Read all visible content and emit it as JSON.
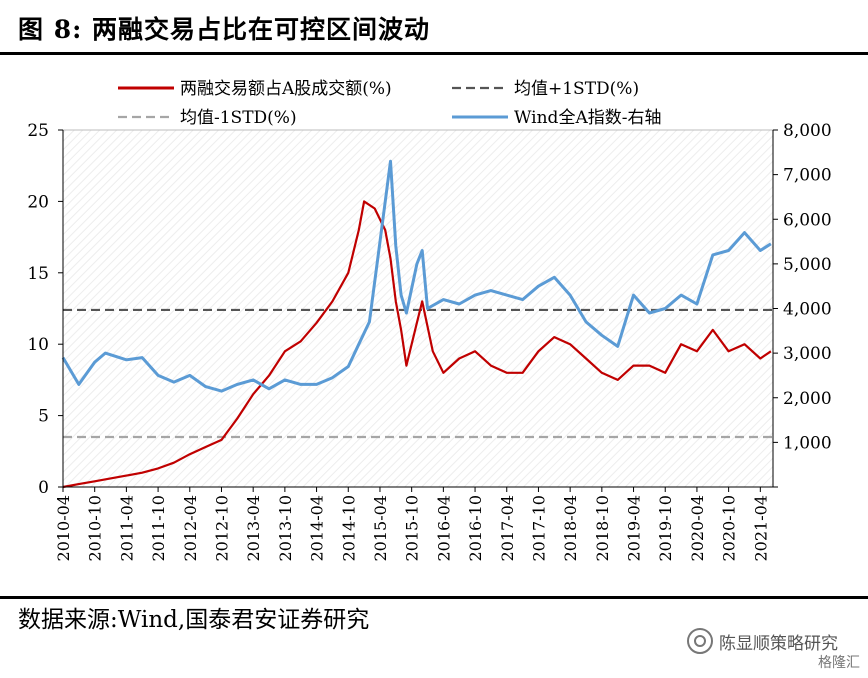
{
  "header": {
    "title": "图 8:  两融交易占比在可控区间波动"
  },
  "footer": {
    "source": "数据来源:Wind,国泰君安证券研究",
    "watermark": "陈显顺策略研究",
    "watermark2": "格隆汇"
  },
  "colors": {
    "series1": "#c00000",
    "series2": "#5b9bd5",
    "plus_std": "#555555",
    "minus_std": "#a6a6a6"
  },
  "chart_data": {
    "type": "line",
    "title": "",
    "x_tick_labels": [
      "2010-04",
      "2010-10",
      "2011-04",
      "2011-10",
      "2012-04",
      "2012-10",
      "2013-04",
      "2013-10",
      "2014-04",
      "2014-10",
      "2015-04",
      "2015-10",
      "2016-04",
      "2016-10",
      "2017-04",
      "2017-10",
      "2018-04",
      "2018-10",
      "2019-04",
      "2019-10",
      "2020-04",
      "2020-10",
      "2021-04"
    ],
    "y_left": {
      "lim": [
        0,
        25
      ],
      "ticks": [
        0,
        5,
        10,
        15,
        20,
        25
      ]
    },
    "y_right": {
      "lim": [
        0,
        8000
      ],
      "ticks": [
        "",
        "1,000",
        "2,000",
        "3,000",
        "4,000",
        "5,000",
        "6,000",
        "7,000",
        "8,000"
      ]
    },
    "legend": [
      {
        "label": "两融交易额占A股成交额(%)",
        "style": "solid",
        "color": "#c00000"
      },
      {
        "label": "均值+1STD(%)",
        "style": "dashed",
        "color": "#555555"
      },
      {
        "label": "均值-1STD(%)",
        "style": "dashed",
        "color": "#a6a6a6"
      },
      {
        "label": "Wind全A指数-右轴",
        "style": "solid",
        "color": "#5b9bd5"
      }
    ],
    "reference_lines": {
      "mean_plus_1std": 12.4,
      "mean_minus_1std": 3.5
    },
    "series": [
      {
        "axis": "left",
        "points": [
          [
            "2010-04",
            0.0
          ],
          [
            "2010-07",
            0.2
          ],
          [
            "2010-10",
            0.4
          ],
          [
            "2011-01",
            0.6
          ],
          [
            "2011-04",
            0.8
          ],
          [
            "2011-07",
            1.0
          ],
          [
            "2011-10",
            1.3
          ],
          [
            "2012-01",
            1.7
          ],
          [
            "2012-04",
            2.3
          ],
          [
            "2012-07",
            2.8
          ],
          [
            "2012-10",
            3.3
          ],
          [
            "2013-01",
            4.8
          ],
          [
            "2013-04",
            6.5
          ],
          [
            "2013-07",
            7.8
          ],
          [
            "2013-10",
            9.5
          ],
          [
            "2014-01",
            10.2
          ],
          [
            "2014-04",
            11.5
          ],
          [
            "2014-07",
            13.0
          ],
          [
            "2014-10",
            15.0
          ],
          [
            "2014-12",
            18.0
          ],
          [
            "2015-01",
            20.0
          ],
          [
            "2015-03",
            19.5
          ],
          [
            "2015-05",
            18.0
          ],
          [
            "2015-06",
            16.0
          ],
          [
            "2015-07",
            13.0
          ],
          [
            "2015-08",
            11.0
          ],
          [
            "2015-09",
            8.5
          ],
          [
            "2015-11",
            11.5
          ],
          [
            "2015-12",
            13.0
          ],
          [
            "2016-02",
            9.5
          ],
          [
            "2016-04",
            8.0
          ],
          [
            "2016-07",
            9.0
          ],
          [
            "2016-10",
            9.5
          ],
          [
            "2017-01",
            8.5
          ],
          [
            "2017-04",
            8.0
          ],
          [
            "2017-07",
            8.0
          ],
          [
            "2017-10",
            9.5
          ],
          [
            "2018-01",
            10.5
          ],
          [
            "2018-04",
            10.0
          ],
          [
            "2018-07",
            9.0
          ],
          [
            "2018-10",
            8.0
          ],
          [
            "2019-01",
            7.5
          ],
          [
            "2019-04",
            8.5
          ],
          [
            "2019-07",
            8.5
          ],
          [
            "2019-10",
            8.0
          ],
          [
            "2020-01",
            10.0
          ],
          [
            "2020-04",
            9.5
          ],
          [
            "2020-07",
            11.0
          ],
          [
            "2020-10",
            9.5
          ],
          [
            "2021-01",
            10.0
          ],
          [
            "2021-04",
            9.0
          ],
          [
            "2021-06",
            9.5
          ]
        ]
      },
      {
        "axis": "right",
        "points": [
          [
            "2010-04",
            2900
          ],
          [
            "2010-07",
            2300
          ],
          [
            "2010-10",
            2800
          ],
          [
            "2010-12",
            3000
          ],
          [
            "2011-04",
            2850
          ],
          [
            "2011-07",
            2900
          ],
          [
            "2011-10",
            2500
          ],
          [
            "2012-01",
            2350
          ],
          [
            "2012-04",
            2500
          ],
          [
            "2012-07",
            2250
          ],
          [
            "2012-10",
            2150
          ],
          [
            "2013-01",
            2300
          ],
          [
            "2013-04",
            2400
          ],
          [
            "2013-07",
            2200
          ],
          [
            "2013-10",
            2400
          ],
          [
            "2014-01",
            2300
          ],
          [
            "2014-04",
            2300
          ],
          [
            "2014-07",
            2450
          ],
          [
            "2014-10",
            2700
          ],
          [
            "2014-12",
            3200
          ],
          [
            "2015-02",
            3700
          ],
          [
            "2015-04",
            5500
          ],
          [
            "2015-06",
            7300
          ],
          [
            "2015-07",
            5400
          ],
          [
            "2015-08",
            4300
          ],
          [
            "2015-09",
            3900
          ],
          [
            "2015-11",
            5000
          ],
          [
            "2015-12",
            5300
          ],
          [
            "2016-01",
            4000
          ],
          [
            "2016-04",
            4200
          ],
          [
            "2016-07",
            4100
          ],
          [
            "2016-10",
            4300
          ],
          [
            "2017-01",
            4400
          ],
          [
            "2017-04",
            4300
          ],
          [
            "2017-07",
            4200
          ],
          [
            "2017-10",
            4500
          ],
          [
            "2018-01",
            4700
          ],
          [
            "2018-04",
            4300
          ],
          [
            "2018-07",
            3700
          ],
          [
            "2018-10",
            3400
          ],
          [
            "2019-01",
            3150
          ],
          [
            "2019-04",
            4300
          ],
          [
            "2019-07",
            3900
          ],
          [
            "2019-10",
            4000
          ],
          [
            "2020-01",
            4300
          ],
          [
            "2020-04",
            4100
          ],
          [
            "2020-07",
            5200
          ],
          [
            "2020-10",
            5300
          ],
          [
            "2021-01",
            5700
          ],
          [
            "2021-04",
            5300
          ],
          [
            "2021-06",
            5450
          ]
        ]
      }
    ]
  }
}
